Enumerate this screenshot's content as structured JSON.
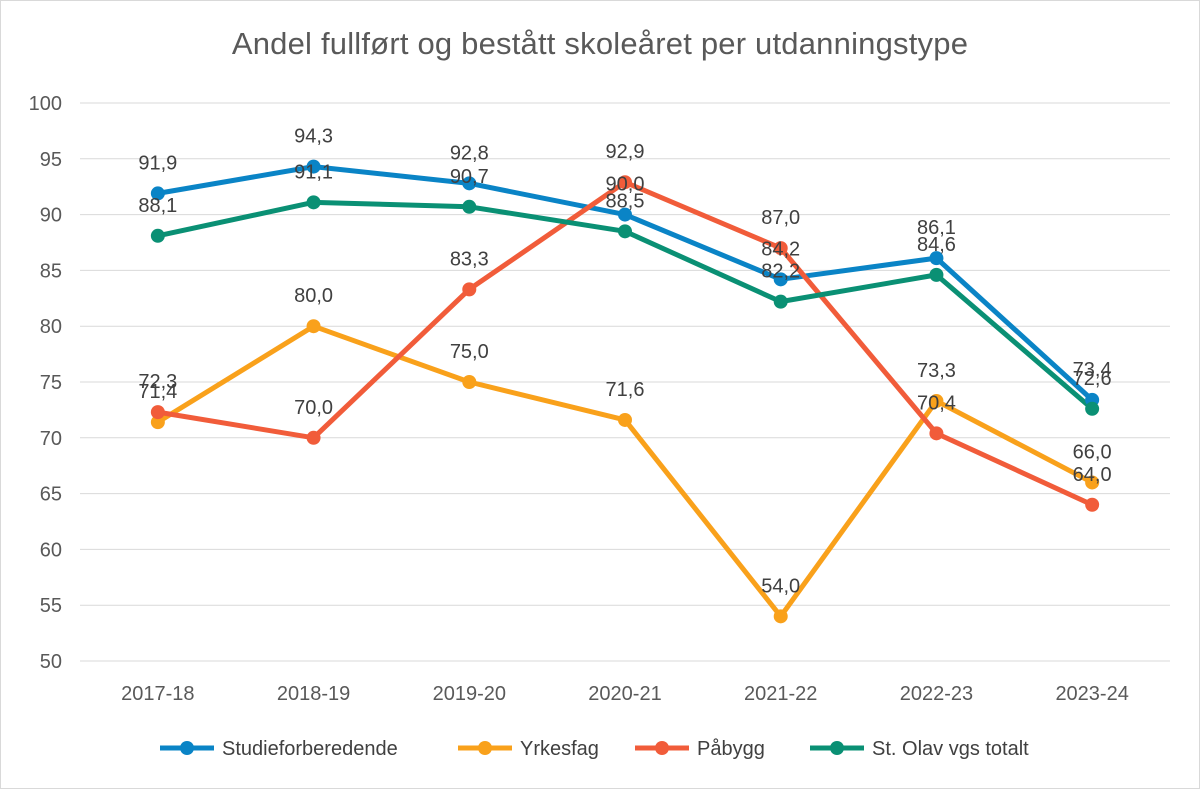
{
  "chart_data": {
    "type": "line",
    "title": "Andel fullført og bestått skoleåret per utdanningstype",
    "xlabel": "",
    "ylabel": "",
    "categories": [
      "2017-18",
      "2018-19",
      "2019-20",
      "2020-21",
      "2021-22",
      "2022-23",
      "2023-24"
    ],
    "ylim": [
      50,
      100
    ],
    "yticks": [
      "50",
      "55",
      "60",
      "65",
      "70",
      "75",
      "80",
      "85",
      "90",
      "95",
      "100"
    ],
    "grid": true,
    "legend_position": "bottom",
    "series": [
      {
        "name": "Studieforberedende",
        "color": "#0a84c6",
        "values": [
          91.9,
          94.3,
          92.8,
          90.0,
          84.2,
          86.1,
          73.4
        ],
        "labels": [
          "91,9",
          "94,3",
          "92,8",
          "90,0",
          "84,2",
          "86,1",
          "73,4"
        ]
      },
      {
        "name": "Yrkesfag",
        "color": "#f9a11b",
        "values": [
          71.4,
          80.0,
          75.0,
          71.6,
          54.0,
          73.3,
          66.0
        ],
        "labels": [
          "71,4",
          "80,0",
          "75,0",
          "71,6",
          "54,0",
          "73,3",
          "66,0"
        ]
      },
      {
        "name": "Påbygg",
        "color": "#f15c3a",
        "values": [
          72.3,
          70.0,
          83.3,
          92.9,
          87.0,
          70.4,
          64.0
        ],
        "labels": [
          "72,3",
          "70,0",
          "83,3",
          "92,9",
          "87,0",
          "70,4",
          "64,0"
        ]
      },
      {
        "name": "St. Olav vgs totalt",
        "color": "#0a9074",
        "values": [
          88.1,
          91.1,
          90.7,
          88.5,
          82.2,
          84.6,
          72.6
        ],
        "labels": [
          "88,1",
          "91,1",
          "90,7",
          "88,5",
          "82,2",
          "84,6",
          "72,6"
        ]
      }
    ]
  }
}
